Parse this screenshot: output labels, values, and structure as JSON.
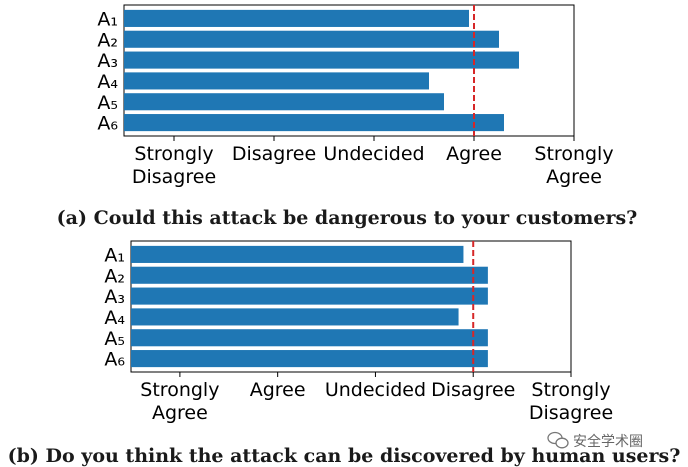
{
  "chart_data": [
    {
      "type": "bar",
      "orientation": "horizontal",
      "categories": [
        "A₁",
        "A₂",
        "A₃",
        "A₄",
        "A₅",
        "A₆"
      ],
      "values": [
        3.95,
        4.25,
        4.45,
        3.55,
        3.7,
        4.3
      ],
      "xlim": [
        0.5,
        5.0
      ],
      "xticks": [
        1,
        2,
        3,
        4,
        5
      ],
      "xticklabels": [
        [
          "Strongly",
          "Disagree"
        ],
        [
          "Disagree"
        ],
        [
          "Undecided"
        ],
        [
          "Agree"
        ],
        [
          "Strongly",
          "Agree"
        ]
      ],
      "reference_line": 4.0,
      "bar_color": "#1f77b4",
      "reference_line_color": "#d62728",
      "caption": "(a) Could this attack be dangerous to your customers?"
    },
    {
      "type": "bar",
      "orientation": "horizontal",
      "categories": [
        "A₁",
        "A₂",
        "A₃",
        "A₄",
        "A₅",
        "A₆"
      ],
      "values": [
        3.9,
        4.15,
        4.15,
        3.85,
        4.15,
        4.15
      ],
      "xlim": [
        0.5,
        5.0
      ],
      "xticks": [
        1,
        2,
        3,
        4,
        5
      ],
      "xticklabels": [
        [
          "Strongly",
          "Agree"
        ],
        [
          "Agree"
        ],
        [
          "Undecided"
        ],
        [
          "Disagree"
        ],
        [
          "Strongly",
          "Disagree"
        ]
      ],
      "reference_line": 4.0,
      "bar_color": "#1f77b4",
      "reference_line_color": "#d62728",
      "caption": "(b) Do you think the attack can be discovered by human users?"
    }
  ],
  "watermark": {
    "icon": "wechat-icon",
    "text": "安全学术圈"
  }
}
